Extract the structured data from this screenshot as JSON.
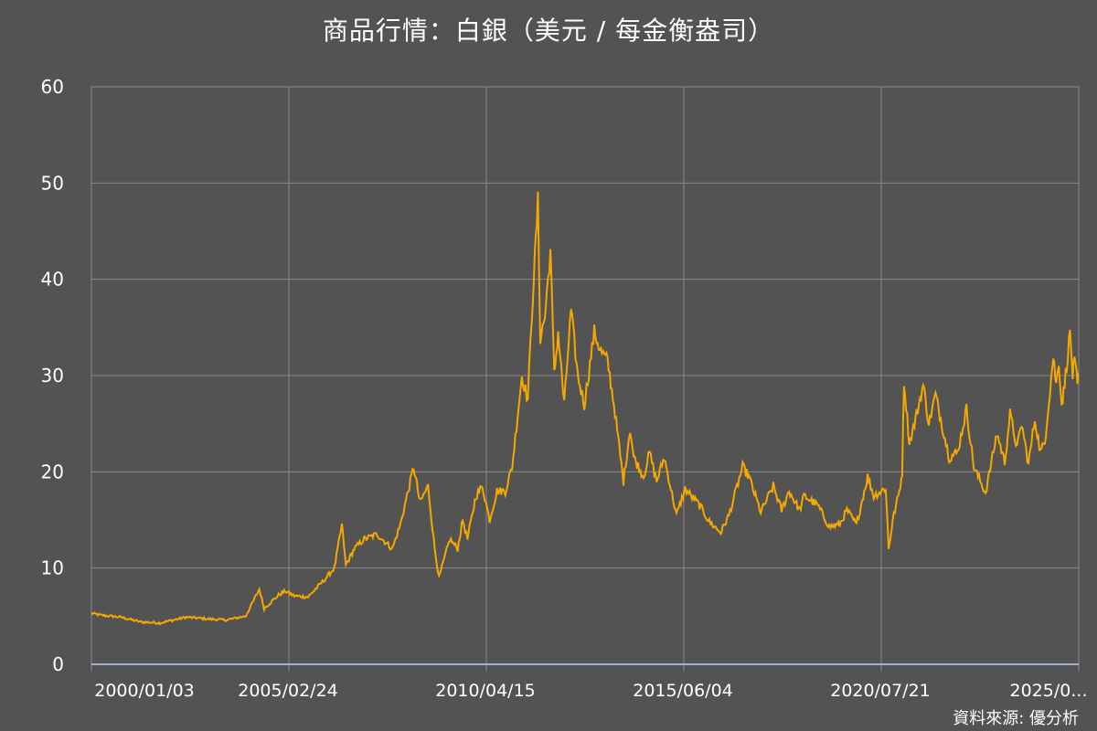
{
  "chart_data": {
    "type": "line",
    "title": "商品行情：白銀（美元 / 每金衡盎司）",
    "source": "資料來源: 優分析",
    "colors": {
      "line": "#f5a800",
      "background": "#535353",
      "grid": "#8a8a8a",
      "axis": "#b9d1f0"
    },
    "grid": true,
    "ylim": [
      0,
      60
    ],
    "yticks": [
      "0",
      "10",
      "20",
      "30",
      "40",
      "50",
      "60"
    ],
    "xticks": [
      "2000/01/03",
      "2005/02/24",
      "2010/04/15",
      "2015/06/04",
      "2020/07/21",
      "2025/0..."
    ],
    "xlim": [
      "2000/01/03",
      "2025/01/10"
    ],
    "series": [
      {
        "points": [
          [
            "2000/01/03",
            5.3
          ],
          [
            "2000/04/01",
            5.1
          ],
          [
            "2000/10/01",
            4.9
          ],
          [
            "2001/04/01",
            4.4
          ],
          [
            "2001/10/01",
            4.3
          ],
          [
            "2002/06/01",
            4.9
          ],
          [
            "2003/01/01",
            4.7
          ],
          [
            "2003/06/01",
            4.6
          ],
          [
            "2003/12/01",
            5.0
          ],
          [
            "2004/04/05",
            7.8
          ],
          [
            "2004/05/20",
            5.8
          ],
          [
            "2004/10/01",
            7.2
          ],
          [
            "2004/12/01",
            7.6
          ],
          [
            "2005/02/24",
            7.1
          ],
          [
            "2005/07/01",
            7.0
          ],
          [
            "2005/12/01",
            8.8
          ],
          [
            "2006/03/01",
            10.0
          ],
          [
            "2006/05/10",
            14.5
          ],
          [
            "2006/06/15",
            10.3
          ],
          [
            "2006/09/01",
            12.0
          ],
          [
            "2006/12/01",
            13.0
          ],
          [
            "2007/04/01",
            13.5
          ],
          [
            "2007/08/20",
            12.0
          ],
          [
            "2007/11/01",
            14.5
          ],
          [
            "2008/03/05",
            20.5
          ],
          [
            "2008/05/01",
            16.8
          ],
          [
            "2008/07/15",
            18.5
          ],
          [
            "2008/09/15",
            12.0
          ],
          [
            "2008/10/25",
            9.0
          ],
          [
            "2009/02/01",
            13.0
          ],
          [
            "2009/04/15",
            12.0
          ],
          [
            "2009/06/01",
            15.0
          ],
          [
            "2009/07/15",
            13.0
          ],
          [
            "2009/10/01",
            17.5
          ],
          [
            "2009/12/01",
            18.5
          ],
          [
            "2010/02/05",
            15.0
          ],
          [
            "2010/04/15",
            18.0
          ],
          [
            "2010/07/01",
            18.0
          ],
          [
            "2010/09/01",
            20.5
          ],
          [
            "2010/12/01",
            30.0
          ],
          [
            "2011/01/25",
            27.5
          ],
          [
            "2011/03/01",
            36.0
          ],
          [
            "2011/04/28",
            48.0
          ],
          [
            "2011/05/20",
            34.0
          ],
          [
            "2011/07/01",
            36.0
          ],
          [
            "2011/08/22",
            43.0
          ],
          [
            "2011/09/26",
            30.0
          ],
          [
            "2011/11/01",
            34.5
          ],
          [
            "2011/12/28",
            27.0
          ],
          [
            "2012/02/28",
            36.8
          ],
          [
            "2012/05/01",
            30.0
          ],
          [
            "2012/07/01",
            27.0
          ],
          [
            "2012/10/01",
            34.5
          ],
          [
            "2012/12/01",
            32.5
          ],
          [
            "2013/02/01",
            31.5
          ],
          [
            "2013/04/01",
            27.0
          ],
          [
            "2013/06/28",
            19.0
          ],
          [
            "2013/08/28",
            24.5
          ],
          [
            "2013/10/01",
            21.5
          ],
          [
            "2013/12/31",
            19.5
          ],
          [
            "2014/02/24",
            22.0
          ],
          [
            "2014/05/01",
            19.0
          ],
          [
            "2014/07/10",
            21.5
          ],
          [
            "2014/11/01",
            15.5
          ],
          [
            "2015/01/20",
            18.2
          ],
          [
            "2015/06/04",
            16.5
          ],
          [
            "2015/09/01",
            14.8
          ],
          [
            "2015/12/15",
            13.7
          ],
          [
            "2016/03/01",
            15.5
          ],
          [
            "2016/07/05",
            20.5
          ],
          [
            "2016/09/01",
            19.5
          ],
          [
            "2016/12/20",
            15.8
          ],
          [
            "2017/04/15",
            18.5
          ],
          [
            "2017/07/01",
            16.0
          ],
          [
            "2017/09/08",
            18.0
          ],
          [
            "2017/12/15",
            16.0
          ],
          [
            "2018/01/25",
            17.5
          ],
          [
            "2018/06/01",
            16.5
          ],
          [
            "2018/09/15",
            14.3
          ],
          [
            "2018/12/20",
            14.5
          ],
          [
            "2019/02/25",
            16.0
          ],
          [
            "2019/05/25",
            14.5
          ],
          [
            "2019/09/05",
            19.5
          ],
          [
            "2019/11/01",
            17.5
          ],
          [
            "2020/02/20",
            18.3
          ],
          [
            "2020/03/18",
            12.0
          ],
          [
            "2020/04/25",
            15.0
          ],
          [
            "2020/06/25",
            18.0
          ],
          [
            "2020/07/21",
            20.0
          ],
          [
            "2020/08/07",
            29.5
          ],
          [
            "2020/09/25",
            23.0
          ],
          [
            "2020/11/01",
            24.5
          ],
          [
            "2021/02/01",
            29.0
          ],
          [
            "2021/03/25",
            25.0
          ],
          [
            "2021/05/25",
            28.0
          ],
          [
            "2021/09/29",
            21.5
          ],
          [
            "2021/12/15",
            22.0
          ],
          [
            "2022/03/08",
            26.5
          ],
          [
            "2022/05/15",
            20.5
          ],
          [
            "2022/09/01",
            17.8
          ],
          [
            "2022/12/15",
            24.0
          ],
          [
            "2023/02/25",
            21.0
          ],
          [
            "2023/04/15",
            26.0
          ],
          [
            "2023/06/20",
            22.5
          ],
          [
            "2023/08/01",
            25.0
          ],
          [
            "2023/10/03",
            20.8
          ],
          [
            "2023/12/01",
            25.5
          ],
          [
            "2024/01/22",
            22.0
          ],
          [
            "2024/03/01",
            23.0
          ],
          [
            "2024/05/20",
            32.0
          ],
          [
            "2024/06/15",
            29.0
          ],
          [
            "2024/07/10",
            31.5
          ],
          [
            "2024/08/05",
            27.0
          ],
          [
            "2024/09/01",
            29.0
          ],
          [
            "2024/10/22",
            34.5
          ],
          [
            "2024/11/15",
            30.0
          ],
          [
            "2024/12/01",
            31.5
          ],
          [
            "2024/12/30",
            29.0
          ],
          [
            "2025/01/10",
            30.0
          ]
        ]
      }
    ]
  }
}
